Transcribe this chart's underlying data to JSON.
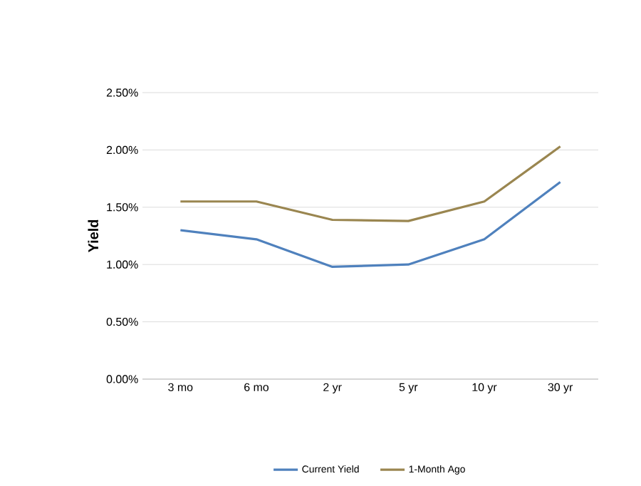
{
  "chart_data": {
    "type": "line",
    "ylabel": "Yield",
    "categories": [
      "3 mo",
      "6 mo",
      "2 yr",
      "5 yr",
      "10 yr",
      "30 yr"
    ],
    "series": [
      {
        "name": "Current Yield",
        "color": "#4f81bd",
        "values": [
          1.3,
          1.22,
          0.98,
          1.0,
          1.22,
          1.72
        ]
      },
      {
        "name": "1-Month Ago",
        "color": "#9a8650",
        "values": [
          1.55,
          1.55,
          1.39,
          1.38,
          1.55,
          2.03
        ]
      }
    ],
    "ylim": [
      0,
      2.5
    ],
    "yticks": [
      {
        "value": 0,
        "label": "0.00%"
      },
      {
        "value": 0.5,
        "label": "0.50%"
      },
      {
        "value": 1,
        "label": "1.00%"
      },
      {
        "value": 1.5,
        "label": "1.50%"
      },
      {
        "value": 2,
        "label": "2.00%"
      },
      {
        "value": 2.5,
        "label": "2.50%"
      }
    ],
    "grid": "y",
    "legend": "bottom",
    "marker": "none",
    "line_style": "solid"
  }
}
